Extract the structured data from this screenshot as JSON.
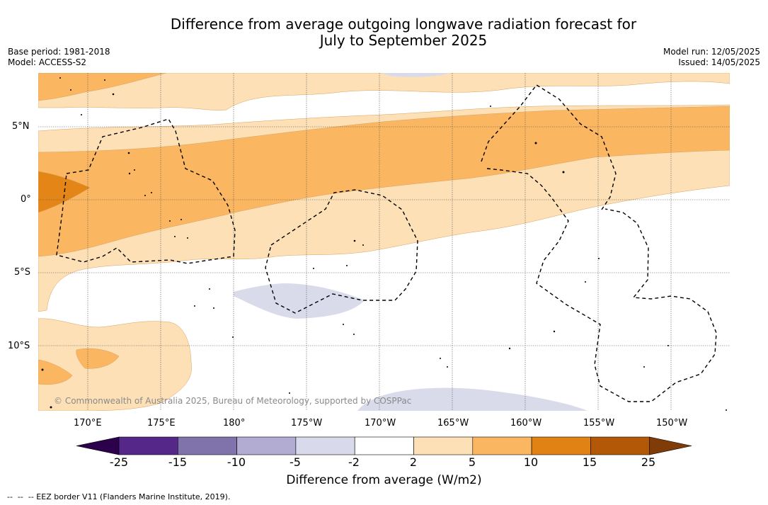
{
  "title": {
    "line1": "Difference from average outgoing longwave radiation forecast for",
    "line2": "July to September 2025"
  },
  "meta_left": {
    "base_period": "Base period: 1981-2018",
    "model": "Model: ACCESS-S2"
  },
  "meta_right": {
    "model_run": "Model run: 12/05/2025",
    "issued": "Issued: 14/05/2025"
  },
  "map": {
    "lon_labels": [
      "170°E",
      "175°E",
      "180°",
      "175°W",
      "170°W",
      "165°W",
      "160°W",
      "155°W",
      "150°W"
    ],
    "lat_labels": [
      "5°N",
      "0°",
      "5°S",
      "10°S"
    ],
    "copyright": "© Commonwealth of Australia 2025, Bureau of Meteorology, supported by COSPPac",
    "colors": {
      "pos_2_5": "#fde0b6",
      "pos_5_10": "#fbb662",
      "pos_10_15": "#e48617",
      "neg_5_2": "#d9dbeb"
    }
  },
  "colorbar": {
    "ticks": [
      "-25",
      "-15",
      "-10",
      "-5",
      "-2",
      "2",
      "5",
      "10",
      "15",
      "25"
    ],
    "colors": [
      "#2d004b",
      "#542788",
      "#8073ac",
      "#b2abd2",
      "#d8daeb",
      "#ffffff",
      "#fde0b6",
      "#fbb662",
      "#e08214",
      "#b35806",
      "#7f3b08"
    ],
    "label": "Difference from average (W/m2)"
  },
  "footnote": "--  --  -- EEZ border V11 (Flanders Marine Institute, 2019)."
}
